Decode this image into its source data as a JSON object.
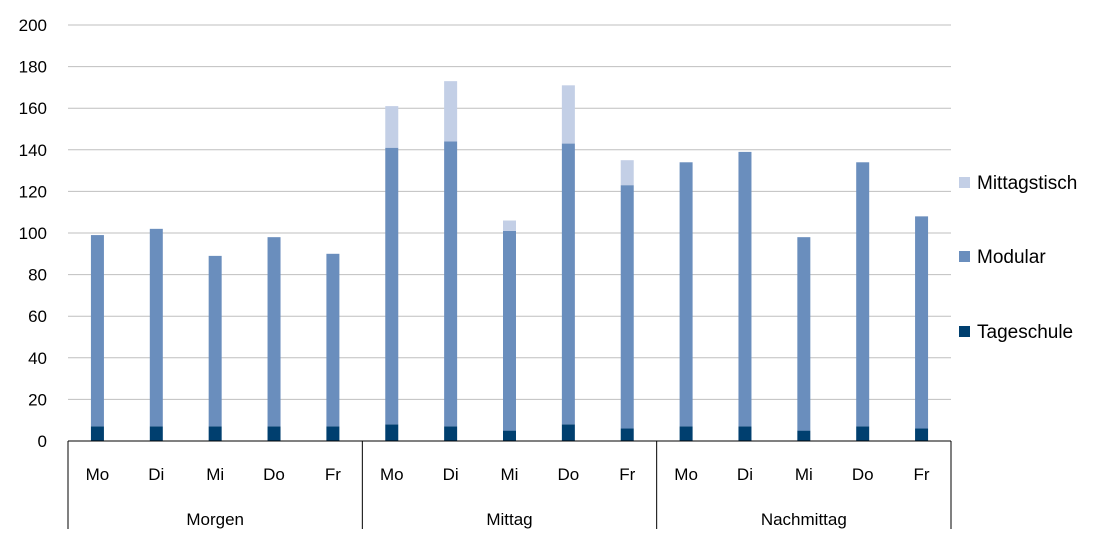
{
  "chart_data": {
    "type": "bar",
    "stacked": true,
    "categories": [
      "Mo",
      "Di",
      "Mi",
      "Do",
      "Fr",
      "Mo",
      "Di",
      "Mi",
      "Do",
      "Fr",
      "Mo",
      "Di",
      "Mi",
      "Do",
      "Fr"
    ],
    "groups": [
      {
        "label": "Morgen",
        "count": 5
      },
      {
        "label": "Mittag",
        "count": 5
      },
      {
        "label": "Nachmittag",
        "count": 5
      }
    ],
    "series": [
      {
        "name": "Tageschule",
        "color": "#003f6f",
        "values": [
          7,
          7,
          7,
          7,
          7,
          8,
          7,
          5,
          8,
          6,
          7,
          7,
          5,
          7,
          6
        ]
      },
      {
        "name": "Modular",
        "color": "#6a8ebd",
        "values": [
          92,
          95,
          82,
          91,
          83,
          133,
          137,
          96,
          135,
          117,
          127,
          132,
          93,
          127,
          102
        ]
      },
      {
        "name": "Mittagstisch",
        "color": "#c3cfe6",
        "values": [
          0,
          0,
          0,
          0,
          0,
          20,
          29,
          5,
          28,
          12,
          0,
          0,
          0,
          0,
          0
        ]
      }
    ],
    "ylim": [
      0,
      200
    ],
    "yticks": [
      "0",
      "20",
      "40",
      "60",
      "80",
      "100",
      "120",
      "140",
      "160",
      "180",
      "200"
    ],
    "grid": true,
    "legend_position": "right",
    "legend_order": [
      "Mittagstisch",
      "Modular",
      "Tageschule"
    ],
    "title": "",
    "xlabel": "",
    "ylabel": ""
  }
}
